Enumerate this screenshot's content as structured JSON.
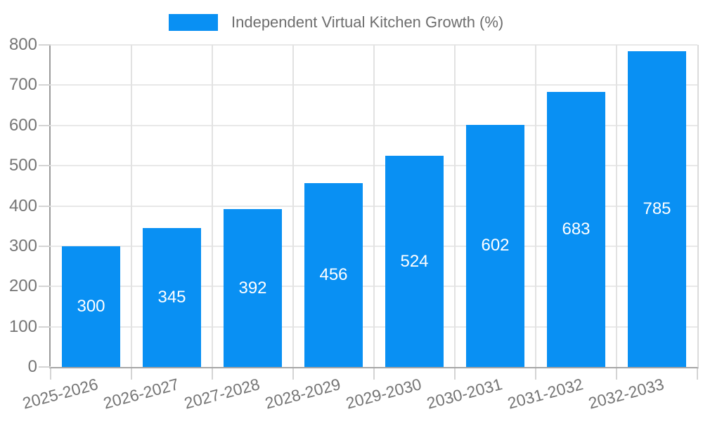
{
  "chart_data": {
    "type": "bar",
    "title": "Independent Virtual Kitchen Growth (%)",
    "categories": [
      "2025-2026",
      "2026-2027",
      "2027-2028",
      "2028-2029",
      "2029-2030",
      "2030-2031",
      "2031-2032",
      "2032-2033"
    ],
    "values": [
      300,
      345,
      392,
      456,
      524,
      602,
      683,
      785
    ],
    "value_labels": [
      "300",
      "345",
      "392",
      "456",
      "524",
      "602",
      "683",
      "785"
    ],
    "xlabel": "",
    "ylabel": "",
    "ylim": [
      0,
      800
    ],
    "yticks": [
      0,
      100,
      200,
      300,
      400,
      500,
      600,
      700,
      800
    ],
    "grid": true,
    "legend_position": "top-center",
    "x_label_rotation_deg": -15,
    "colors": {
      "bar": "#0990f3",
      "value_label": "#ffffff",
      "axis_text": "#757575",
      "legend_text": "#6e6e6e",
      "grid_h": "#e8e8e8",
      "grid_v": "#e2e2e2",
      "tick": "#d4d4d4",
      "background": "#ffffff"
    }
  }
}
